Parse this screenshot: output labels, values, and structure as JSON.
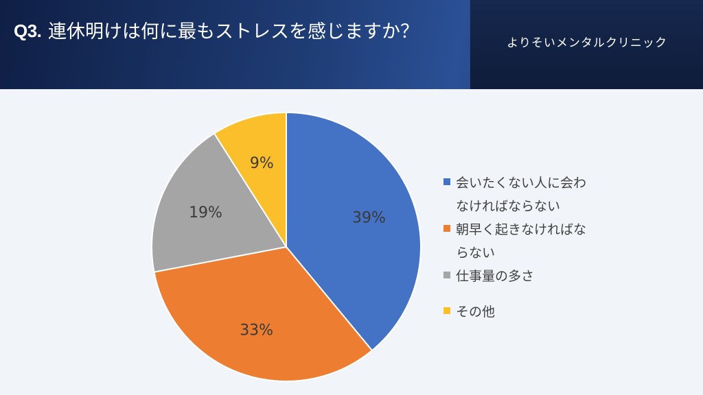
{
  "header": {
    "question_label": "Q3.",
    "question_text": "連休明けは何に最もストレスを感じますか？",
    "clinic_name": "よりそいメンタルクリニック"
  },
  "chart_data": {
    "type": "pie",
    "title": "",
    "start_angle_deg": 0,
    "direction": "clockwise",
    "legend_position": "right",
    "slices": [
      {
        "label": "会いたくない人に会わなければならない",
        "value": 39,
        "data_label": "39%",
        "color": "#4472c4"
      },
      {
        "label": "朝早く起きなければならない",
        "value": 33,
        "data_label": "33%",
        "color": "#ed7d31"
      },
      {
        "label": "仕事量の多さ",
        "value": 19,
        "data_label": "19%",
        "color": "#a5a5a5"
      },
      {
        "label": "その他",
        "value": 9,
        "data_label": "9%",
        "color": "#fbbf2c"
      }
    ]
  }
}
